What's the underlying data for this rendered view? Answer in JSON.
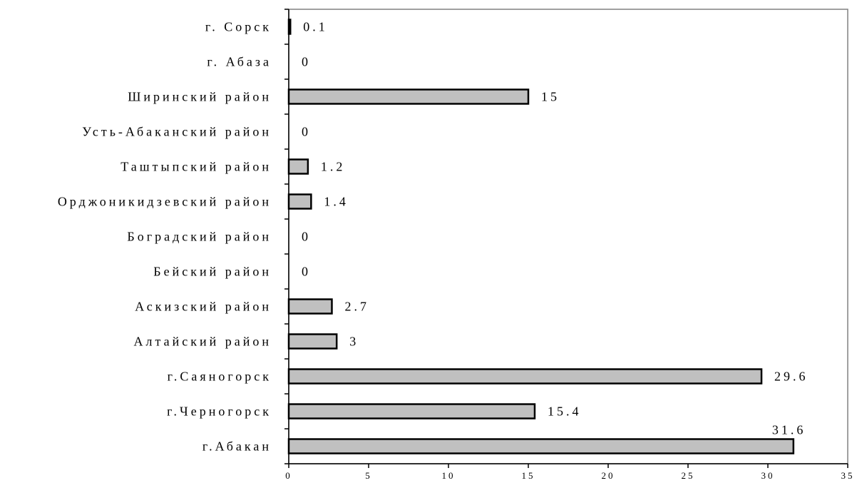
{
  "chart_data": {
    "type": "bar",
    "orientation": "horizontal",
    "categories": [
      "г. Сорск",
      "г. Абаза",
      "Ширинский район",
      "Усть-Абаканский район",
      "Таштыпский район",
      "Орджоникидзевский район",
      "Боградский район",
      "Бейский район",
      "Аскизский район",
      "Алтайский район",
      "г.Саяногорск",
      "г.Черногорск",
      "г.Абакан"
    ],
    "values": [
      0.1,
      0,
      15,
      0,
      1.2,
      1.4,
      0,
      0,
      2.7,
      3,
      29.6,
      15.4,
      31.6
    ],
    "value_labels": [
      "0.1",
      "0",
      "15",
      "0",
      "1.2",
      "1.4",
      "0",
      "0",
      "2.7",
      "3",
      "29.6",
      "15.4",
      "31.6"
    ],
    "x_ticks": [
      "0",
      "5",
      "10",
      "15",
      "20",
      "25",
      "30",
      "35"
    ],
    "xlim": [
      0,
      35
    ],
    "title": "",
    "xlabel": "",
    "ylabel": "",
    "grid": false,
    "legend": "none",
    "bar_color": "#c0c0c0",
    "bar_edge_color": "#000000",
    "frame_color": "#808080"
  }
}
